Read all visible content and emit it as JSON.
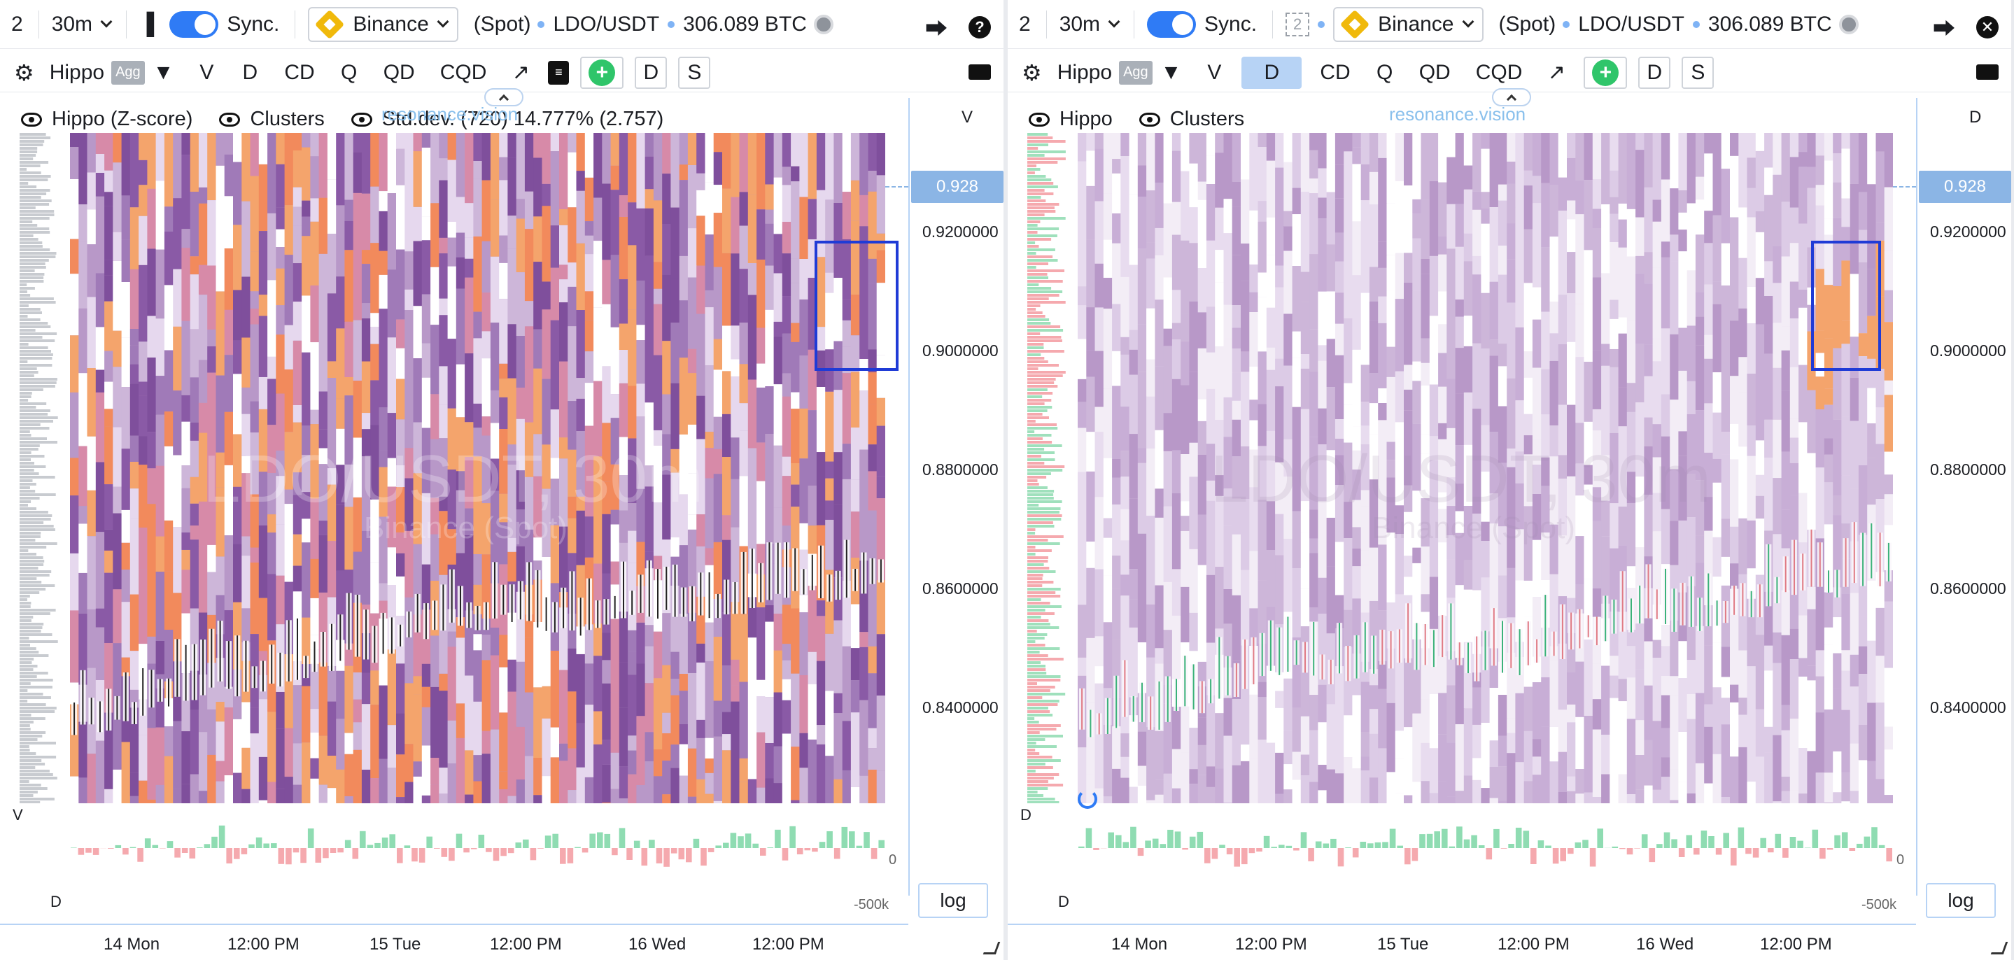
{
  "colors": {
    "accent": "#2f7bf5",
    "highlight_box": "#1f3bd6",
    "positive": "#7fd6a6",
    "negative": "#f2a1a6",
    "price_label_bg": "#8bb5e5"
  },
  "left": {
    "topbar": {
      "layout_count": "2",
      "interval": "30m",
      "sync_label": "Sync.",
      "exchange": "Binance",
      "market": "(Spot)",
      "pair": "LDO/USDT",
      "volume": "306.089 BTC"
    },
    "toolbar": {
      "indicator": "Hippo",
      "agg": "Agg",
      "tabs": [
        "V",
        "D",
        "CD",
        "Q",
        "QD",
        "CQD"
      ],
      "active_tab": "",
      "d_btn": "D",
      "s_btn": "S",
      "plus": "+"
    },
    "legend": {
      "item1": "Hippo (Z-score)",
      "item2": "Clusters",
      "item3": "Std.dev. (720) 14.777% (2.757)"
    },
    "watermark": {
      "site": "resonance.vision",
      "pair": "LDO/USDT, 30m",
      "exchange": "Binance (Spot)"
    },
    "y_axis": {
      "corner_label": "V",
      "current_price": "0.928",
      "ticks": [
        "0.9200000",
        "0.9000000",
        "0.8800000",
        "0.8600000",
        "0.8400000"
      ]
    },
    "sub": {
      "v_label": "V",
      "d_label": "D",
      "zero": "0",
      "min": "-500k",
      "log": "log"
    },
    "x_axis": [
      "14 Mon",
      "12:00 PM",
      "15 Tue",
      "12:00 PM",
      "16 Wed",
      "12:00 PM"
    ]
  },
  "right": {
    "topbar": {
      "layout_count": "2",
      "interval": "30m",
      "sync_label": "Sync.",
      "sync_badge": "2",
      "exchange": "Binance",
      "market": "(Spot)",
      "pair": "LDO/USDT",
      "volume": "306.089 BTC"
    },
    "toolbar": {
      "indicator": "Hippo",
      "agg": "Agg",
      "tabs": [
        "V",
        "D",
        "CD",
        "Q",
        "QD",
        "CQD"
      ],
      "active_tab": "D",
      "d_btn": "D",
      "s_btn": "S",
      "plus": "+"
    },
    "legend": {
      "item1": "Hippo",
      "item2": "Clusters"
    },
    "watermark": {
      "site": "resonance.vision",
      "pair": "LDO/USDT, 30m",
      "exchange": "Binance (Spot)"
    },
    "y_axis": {
      "corner_label": "D",
      "current_price": "0.928",
      "ticks": [
        "0.9200000",
        "0.9000000",
        "0.8800000",
        "0.8600000",
        "0.8400000"
      ]
    },
    "sub": {
      "d_label": "D",
      "d_label2": "D",
      "zero": "0",
      "min": "-500k",
      "log": "log"
    },
    "x_axis": [
      "14 Mon",
      "12:00 PM",
      "15 Tue",
      "12:00 PM",
      "16 Wed",
      "12:00 PM"
    ]
  }
}
